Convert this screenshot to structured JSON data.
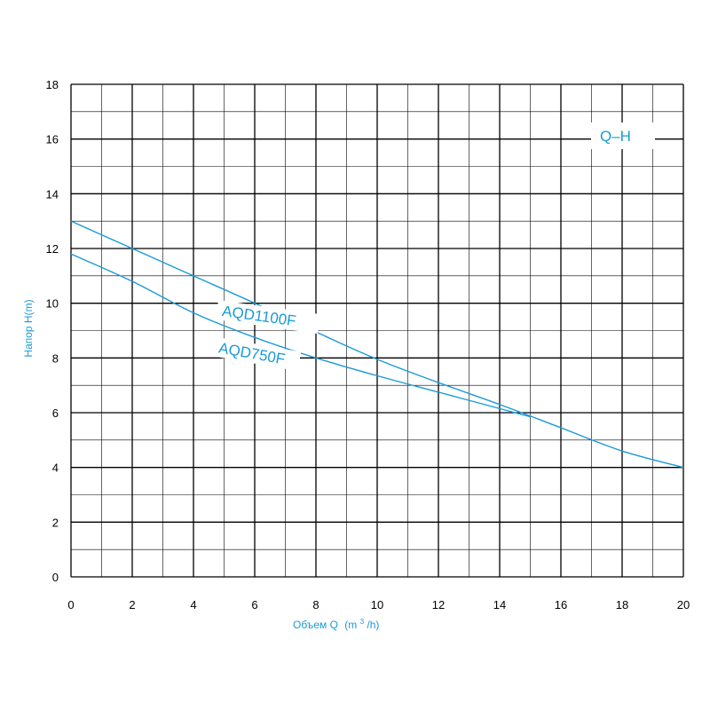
{
  "chart_data": {
    "type": "line",
    "tag": "Q–H",
    "xlabel_main": "Объем Q",
    "xlabel_unit_open": "(m",
    "xlabel_unit_sup": "3",
    "xlabel_unit_close": "/h)",
    "ylabel": "Напор H(m)",
    "xlim": [
      0,
      20
    ],
    "ylim": [
      0,
      18
    ],
    "x_ticks": [
      0,
      2,
      4,
      6,
      8,
      10,
      12,
      14,
      16,
      18,
      20
    ],
    "y_ticks": [
      0,
      2,
      4,
      6,
      8,
      10,
      12,
      14,
      16,
      18
    ],
    "grid": true,
    "colors": {
      "series": "#1a9ad6",
      "grid": "#000000",
      "text": "#000000",
      "label": "#1a9ad6"
    },
    "series": [
      {
        "name": "AQD1100F",
        "x": [
          0,
          2,
          4,
          6,
          8,
          10,
          12,
          14,
          16,
          18,
          20
        ],
        "y": [
          13.0,
          12.0,
          11.0,
          10.0,
          8.95,
          7.95,
          7.1,
          6.3,
          5.45,
          4.6,
          4.0
        ]
      },
      {
        "name": "AQD750F",
        "x": [
          0,
          2,
          4,
          6,
          8,
          10,
          12,
          14,
          15
        ],
        "y": [
          11.8,
          10.8,
          9.65,
          8.75,
          8.0,
          7.35,
          6.75,
          6.15,
          5.85
        ]
      }
    ]
  }
}
